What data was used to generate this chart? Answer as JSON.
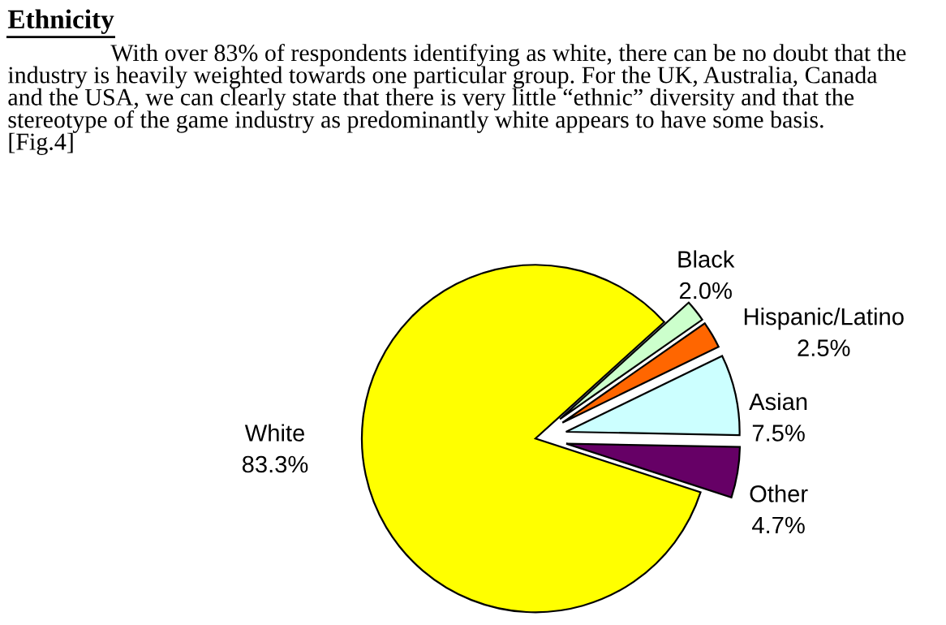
{
  "chart_data": {
    "type": "pie",
    "title": "Ethnicity",
    "subtitle": "With over 83% of respondents identifying as white, there can be no doubt that the\nindustry is heavily weighted towards one particular group. For the UK, Australia, Canada\nand the USA, we can clearly state that there is very little “ethnic” diversity and that the\nstereotype of the game industry as predominantly white appears to have some basis.\n[Fig.4]",
    "value_labels": [
      "83.3%",
      "2.0%",
      "2.5%",
      "7.5%",
      "4.7%"
    ],
    "categories": [
      "White",
      "Black",
      "Hispanic/Latino",
      "Asian",
      "Other"
    ],
    "values": [
      83.3,
      2.0,
      2.5,
      7.5,
      4.7
    ],
    "colors": [
      "#ffff00",
      "#ccffcc",
      "#ff6600",
      "#ccffff",
      "#660066"
    ]
  }
}
